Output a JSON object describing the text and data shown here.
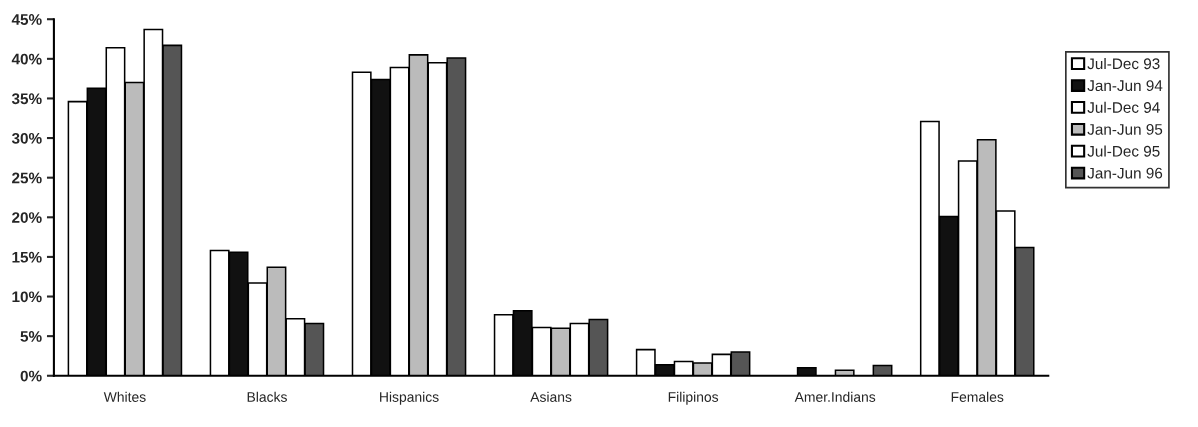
{
  "chart_data": {
    "type": "bar",
    "categories": [
      "Whites",
      "Blacks",
      "Hispanics",
      "Asians",
      "Filipinos",
      "Amer.Indians",
      "Females"
    ],
    "series": [
      {
        "name": "Jul-Dec 93",
        "color": "#ffffff",
        "values": [
          34.6,
          15.8,
          38.3,
          7.7,
          3.3,
          null,
          32.1
        ]
      },
      {
        "name": "Jan-Jun 94",
        "color": "#111111",
        "values": [
          36.3,
          15.6,
          37.4,
          8.2,
          1.4,
          1.0,
          20.1
        ]
      },
      {
        "name": "Jul-Dec 94",
        "color": "#ffffff",
        "values": [
          41.4,
          11.7,
          38.9,
          6.1,
          1.8,
          null,
          27.1
        ]
      },
      {
        "name": "Jan-Jun 95",
        "color": "#bbbbbb",
        "values": [
          37.0,
          13.7,
          40.5,
          6.0,
          1.6,
          0.7,
          29.8
        ]
      },
      {
        "name": "Jul-Dec 95",
        "color": "#ffffff",
        "values": [
          43.7,
          7.2,
          39.5,
          6.6,
          2.7,
          null,
          20.8
        ]
      },
      {
        "name": "Jan-Jun 96",
        "color": "#555555",
        "values": [
          41.7,
          6.6,
          40.1,
          7.1,
          3.0,
          1.3,
          16.2
        ]
      }
    ],
    "ylim": [
      0,
      45
    ],
    "yticks": [
      {
        "value": 0,
        "label": "0%"
      },
      {
        "value": 5,
        "label": "5%"
      },
      {
        "value": 10,
        "label": "10%"
      },
      {
        "value": 15,
        "label": "15%"
      },
      {
        "value": 20,
        "label": "20%"
      },
      {
        "value": 25,
        "label": "25%"
      },
      {
        "value": 30,
        "label": "30%"
      },
      {
        "value": 35,
        "label": "35%"
      },
      {
        "value": 40,
        "label": "40%"
      },
      {
        "value": 45,
        "label": "45%"
      }
    ],
    "grid": false,
    "legend": "top right"
  }
}
